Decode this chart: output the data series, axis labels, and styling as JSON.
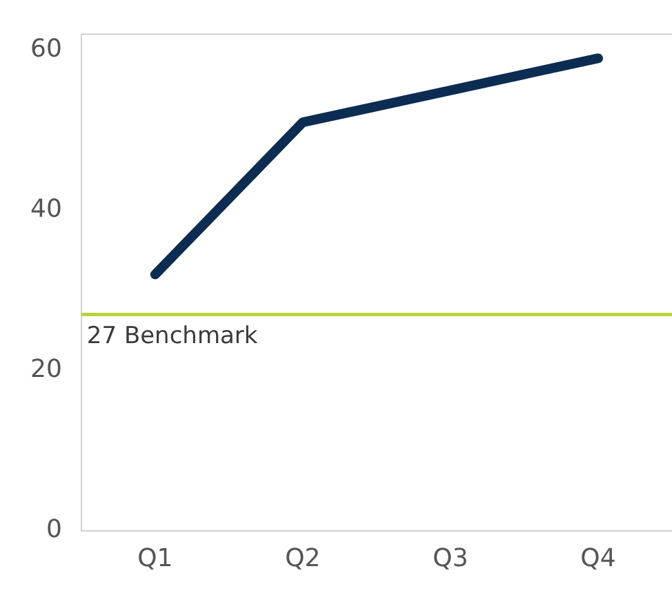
{
  "chart_data": {
    "type": "line",
    "categories": [
      "Q1",
      "Q2",
      "Q3",
      "Q4"
    ],
    "series": [
      {
        "color": "#0c2c52",
        "values": [
          32,
          51,
          55,
          59
        ]
      }
    ],
    "ylim": [
      0,
      62
    ],
    "yticks": [
      0,
      20,
      40,
      60
    ],
    "grid": false,
    "legend": false,
    "marker": "none",
    "line_style": "solid",
    "ref_lines": [
      {
        "axis": "y",
        "value": 27,
        "label": "27 Benchmark",
        "color": "#b8d43a"
      }
    ]
  }
}
